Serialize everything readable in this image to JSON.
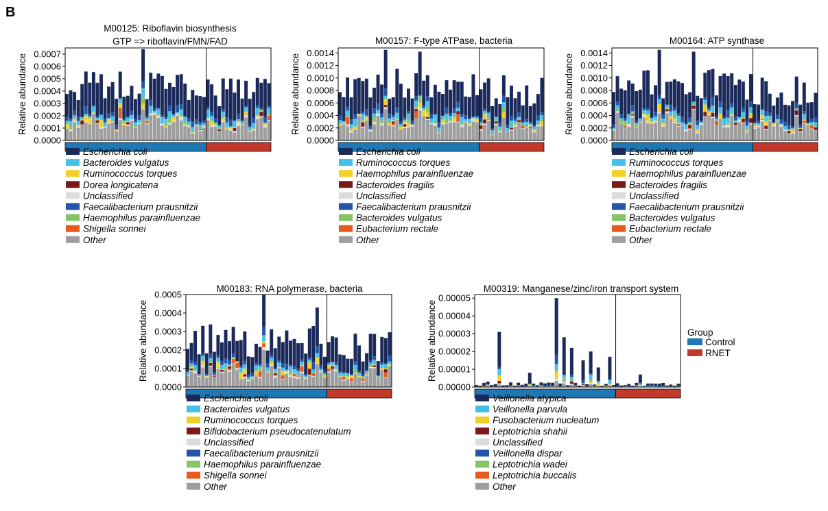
{
  "panel_label": "B",
  "group_legend": {
    "title": "Group",
    "items": [
      {
        "label": "Control",
        "color": "#1f78b4"
      },
      {
        "label": "RNET",
        "color": "#c0392b"
      }
    ]
  },
  "chart_data": [
    {
      "type": "stacked-bar",
      "title": [
        "M00125: Riboflavin biosynthesis",
        "GTP => riboflavin/FMN/FAD"
      ],
      "ylabel": "Relative abundance",
      "ylim": [
        0,
        0.00075
      ],
      "yticks": [
        "0.0000",
        "0.0001",
        "0.0002",
        "0.0003",
        "0.0004",
        "0.0005",
        "0.0006",
        "0.0007"
      ],
      "ytick_values": [
        0,
        0.0001,
        0.0002,
        0.0003,
        0.0004,
        0.0005,
        0.0006,
        0.0007
      ],
      "n_control": 37,
      "n_rnet": 17,
      "control_peaks": {
        "20": 0.00074
      },
      "rnet_peaks": {},
      "base_level": 0.00044,
      "variation": 0.00012,
      "seed": 11,
      "series": [
        {
          "name": "Escherichia coli",
          "color": "#1b2a5a"
        },
        {
          "name": "Bacteroides vulgatus",
          "color": "#46c0e6"
        },
        {
          "name": "Ruminococcus torques",
          "color": "#f2d02a"
        },
        {
          "name": "Dorea longicatena",
          "color": "#7a1a1a"
        },
        {
          "name": "Unclassified",
          "color": "#dcdcdc"
        },
        {
          "name": "Faecalibacterium prausnitzii",
          "color": "#2455a6"
        },
        {
          "name": "Haemophilus parainfluenzae",
          "color": "#86c46a"
        },
        {
          "name": "Shigella sonnei",
          "color": "#e85a1e"
        },
        {
          "name": "Other",
          "color": "#9e9e9e"
        }
      ]
    },
    {
      "type": "stacked-bar",
      "title": [
        "M00157: F-type ATPase, bacteria"
      ],
      "ylabel": "Relative abundance",
      "ylim": [
        0,
        0.00148
      ],
      "yticks": [
        "0.0000",
        "0.0002",
        "0.0004",
        "0.0006",
        "0.0008",
        "0.0010",
        "0.0012",
        "0.0014"
      ],
      "ytick_values": [
        0,
        0.0002,
        0.0004,
        0.0006,
        0.0008,
        0.001,
        0.0012,
        0.0014
      ],
      "n_control": 37,
      "n_rnet": 17,
      "control_peaks": {
        "12": 0.00145,
        "21": 0.00142
      },
      "rnet_peaks": {},
      "base_level": 0.0009,
      "variation": 0.00025,
      "seed": 23,
      "series": [
        {
          "name": "Escherichia coli",
          "color": "#1b2a5a"
        },
        {
          "name": "Ruminococcus torques",
          "color": "#46c0e6"
        },
        {
          "name": "Haemophilus parainfluenzae",
          "color": "#f2d02a"
        },
        {
          "name": "Bacteroides fragilis",
          "color": "#7a1a1a"
        },
        {
          "name": "Unclassified",
          "color": "#dcdcdc"
        },
        {
          "name": "Faecalibacterium prausnitzii",
          "color": "#2455a6"
        },
        {
          "name": "Bacteroides vulgatus",
          "color": "#86c46a"
        },
        {
          "name": "Eubacterium rectale",
          "color": "#e85a1e"
        },
        {
          "name": "Other",
          "color": "#9e9e9e"
        }
      ]
    },
    {
      "type": "stacked-bar",
      "title": [
        "M00164: ATP synthase"
      ],
      "ylabel": "Relative abundance",
      "ylim": [
        0,
        0.00148
      ],
      "yticks": [
        "0.0000",
        "0.0002",
        "0.0004",
        "0.0006",
        "0.0008",
        "0.0010",
        "0.0012",
        "0.0014"
      ],
      "ytick_values": [
        0,
        0.0002,
        0.0004,
        0.0006,
        0.0008,
        0.001,
        0.0012,
        0.0014
      ],
      "n_control": 37,
      "n_rnet": 17,
      "control_peaks": {
        "12": 0.00145,
        "21": 0.00142
      },
      "rnet_peaks": {},
      "base_level": 0.0009,
      "variation": 0.00025,
      "seed": 37,
      "series": [
        {
          "name": "Escherichia coli",
          "color": "#1b2a5a"
        },
        {
          "name": "Ruminococcus torques",
          "color": "#46c0e6"
        },
        {
          "name": "Haemophilus parainfluenzae",
          "color": "#f2d02a"
        },
        {
          "name": "Bacteroides fragilis",
          "color": "#7a1a1a"
        },
        {
          "name": "Unclassified",
          "color": "#dcdcdc"
        },
        {
          "name": "Faecalibacterium prausnitzii",
          "color": "#2455a6"
        },
        {
          "name": "Bacteroides vulgatus",
          "color": "#86c46a"
        },
        {
          "name": "Eubacterium rectale",
          "color": "#e85a1e"
        },
        {
          "name": "Other",
          "color": "#9e9e9e"
        }
      ]
    },
    {
      "type": "stacked-bar",
      "title": [
        "M00183: RNA polymerase, bacteria"
      ],
      "ylabel": "Relative abundance",
      "ylim": [
        0,
        0.0005
      ],
      "yticks": [
        "0.0000",
        "0.0001",
        "0.0002",
        "0.0003",
        "0.0004",
        "0.0005"
      ],
      "ytick_values": [
        0,
        0.0001,
        0.0002,
        0.0003,
        0.0004,
        0.0005
      ],
      "n_control": 37,
      "n_rnet": 17,
      "control_peaks": {
        "20": 0.0005,
        "34": 0.00043
      },
      "rnet_peaks": {},
      "base_level": 0.00025,
      "variation": 9e-05,
      "seed": 51,
      "series": [
        {
          "name": "Escherichia coli",
          "color": "#1b2a5a"
        },
        {
          "name": "Bacteroides vulgatus",
          "color": "#46c0e6"
        },
        {
          "name": "Ruminococcus torques",
          "color": "#f2d02a"
        },
        {
          "name": "Bifidobacterium pseudocatenulatum",
          "color": "#7a1a1a"
        },
        {
          "name": "Unclassified",
          "color": "#dcdcdc"
        },
        {
          "name": "Faecalibacterium prausnitzii",
          "color": "#2455a6"
        },
        {
          "name": "Haemophilus parainfluenzae",
          "color": "#86c46a"
        },
        {
          "name": "Shigella sonnei",
          "color": "#e85a1e"
        },
        {
          "name": "Other",
          "color": "#9e9e9e"
        }
      ]
    },
    {
      "type": "stacked-bar",
      "title": [
        "M00319: Manganese/zinc/iron transport system"
      ],
      "ylabel": "Relative abundance",
      "ylim": [
        0,
        5.2e-05
      ],
      "yticks": [
        "0.00000",
        "0.00001",
        "0.00002",
        "0.00003",
        "0.00004",
        "0.00005"
      ],
      "ytick_values": [
        0,
        1e-05,
        2e-05,
        3e-05,
        4e-05,
        5e-05
      ],
      "n_control": 37,
      "n_rnet": 17,
      "sparse": true,
      "control_peaks": {
        "6": 3.1e-05,
        "21": 5e-05,
        "23": 2.8e-05,
        "25": 2.2e-05,
        "28": 1.5e-05,
        "30": 2e-05,
        "32": 1.1e-05,
        "35": 1.7e-05,
        "14": 8e-06,
        "3": 3e-06
      },
      "rnet_peaks": {
        "6": 7e-06
      },
      "base_level": 2e-06,
      "variation": 2e-06,
      "seed": 67,
      "series": [
        {
          "name": "Veillonella atypica",
          "color": "#1b2a5a"
        },
        {
          "name": "Veillonella parvula",
          "color": "#46c0e6"
        },
        {
          "name": "Fusobacterium nucleatum",
          "color": "#f2d02a"
        },
        {
          "name": "Leptotrichia shahii",
          "color": "#7a1a1a"
        },
        {
          "name": "Unclassified",
          "color": "#dcdcdc"
        },
        {
          "name": "Veillonella dispar",
          "color": "#2455a6"
        },
        {
          "name": "Leptotrichia wadei",
          "color": "#86c46a"
        },
        {
          "name": "Leptotrichia buccalis",
          "color": "#e85a1e"
        },
        {
          "name": "Other",
          "color": "#9e9e9e"
        }
      ]
    }
  ]
}
